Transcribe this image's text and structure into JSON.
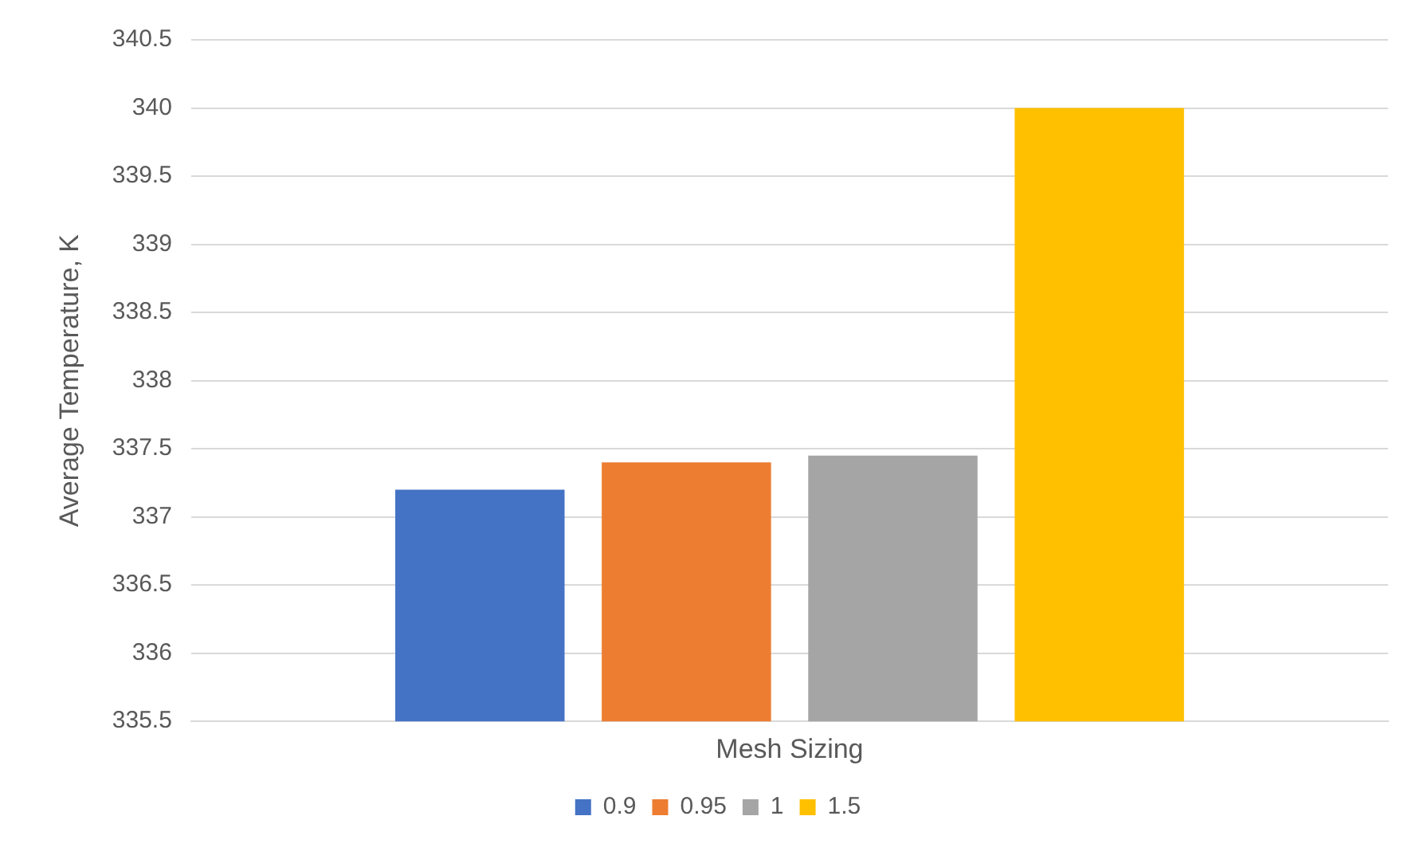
{
  "chart_data": {
    "type": "bar",
    "ylabel": "Average Temperature, K",
    "categories": [
      "Mesh Sizing"
    ],
    "series": [
      {
        "name": "0.9",
        "color": "#4472c4",
        "values": [
          337.2
        ]
      },
      {
        "name": "0.95",
        "color": "#ed7d31",
        "values": [
          337.4
        ]
      },
      {
        "name": "1",
        "color": "#a5a5a5",
        "values": [
          337.45
        ]
      },
      {
        "name": "1.5",
        "color": "#ffc000",
        "values": [
          340
        ]
      }
    ],
    "ylim": [
      335.5,
      340.5
    ],
    "yticks": [
      335.5,
      336,
      336.5,
      337,
      337.5,
      338,
      338.5,
      339,
      339.5,
      340,
      340.5
    ],
    "grid": "y",
    "legend": "bottom"
  }
}
